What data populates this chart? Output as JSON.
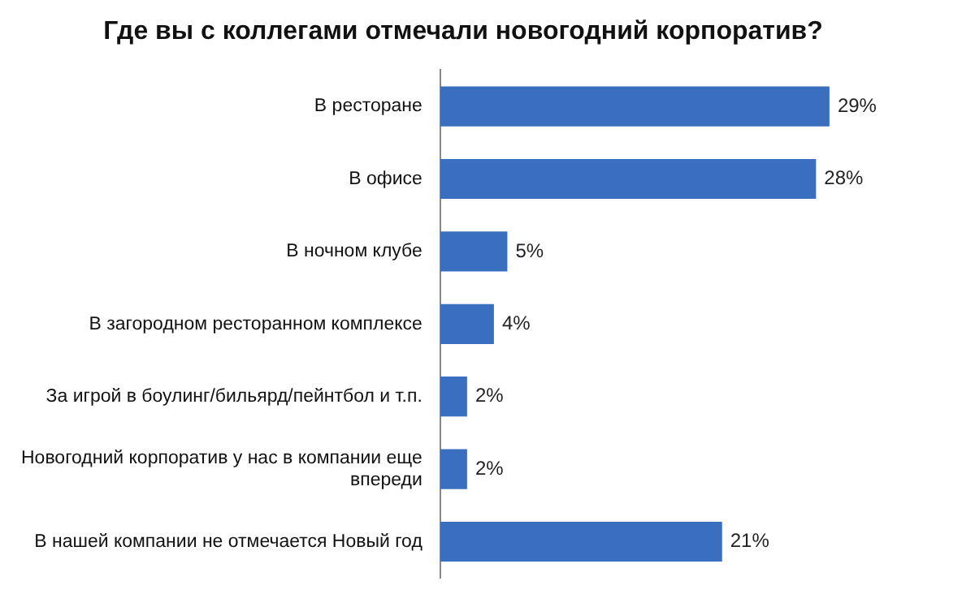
{
  "chart_data": {
    "type": "bar",
    "orientation": "horizontal",
    "title": "Где вы с коллегами отмечали новогодний корпоратив?",
    "categories": [
      "В ресторане",
      "В офисе",
      "В ночном клубе",
      "В загородном ресторанном комплексе",
      "За игрой в боулинг/бильярд/пейнтбол и т.п.",
      "Новогодний корпоратив у нас в компании еще впереди",
      "В нашей компании не отмечается Новый год"
    ],
    "values": [
      29,
      28,
      5,
      4,
      2,
      2,
      21
    ],
    "value_labels": [
      "29%",
      "28%",
      "5%",
      "4%",
      "2%",
      "2%",
      "21%"
    ],
    "color": "#3a6fc0",
    "legend": false
  }
}
